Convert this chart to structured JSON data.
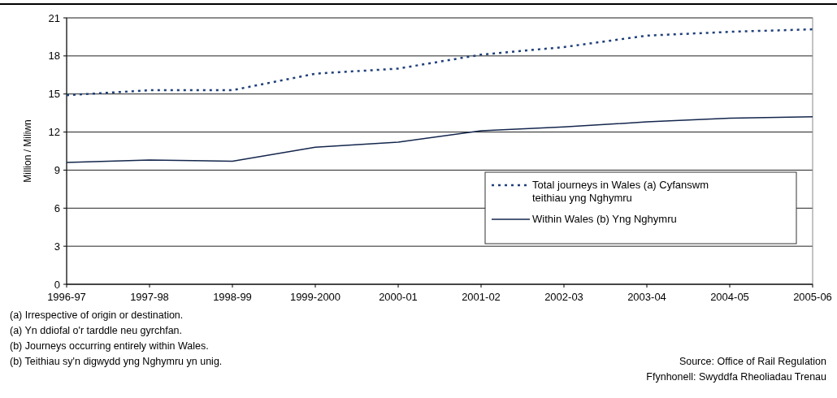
{
  "chart_data": {
    "type": "line",
    "ylabel": "Million / Miliwn",
    "categories": [
      "1996-97",
      "1997-98",
      "1998-99",
      "1999-2000",
      "2000-01",
      "2001-02",
      "2002-03",
      "2003-04",
      "2004-05",
      "2005-06"
    ],
    "series": [
      {
        "name": "Total journeys in Wales (a) Cyfanswm teithiau yng Nghymru",
        "color": "#1f3f7a",
        "line_style": "dotted",
        "values": [
          14.9,
          15.3,
          15.3,
          16.6,
          17.0,
          18.1,
          18.7,
          19.6,
          19.9,
          20.1
        ]
      },
      {
        "name": "Within Wales (b) Yng Nghymru",
        "color": "#14264d",
        "line_style": "solid",
        "values": [
          9.6,
          9.8,
          9.7,
          10.8,
          11.2,
          12.1,
          12.4,
          12.8,
          13.1,
          13.2
        ]
      }
    ],
    "ylim": [
      0,
      21
    ],
    "yticks": [
      0,
      3,
      6,
      9,
      12,
      15,
      18,
      21
    ],
    "grid": "y",
    "legend": "bottom right",
    "annotations": [
      "(a) Irrespective of origin or destination.",
      "(a) Yn ddiofal o'r tarddle neu gyrchfan.",
      "(b) Journeys occurring entirely within Wales.",
      "(b) Teithiau sy'n digwydd yng Nghymru yn unig.",
      "Source: Office of Rail Regulation",
      "Ffynhonell: Swyddfa  Rheoliadau Trenau"
    ]
  }
}
